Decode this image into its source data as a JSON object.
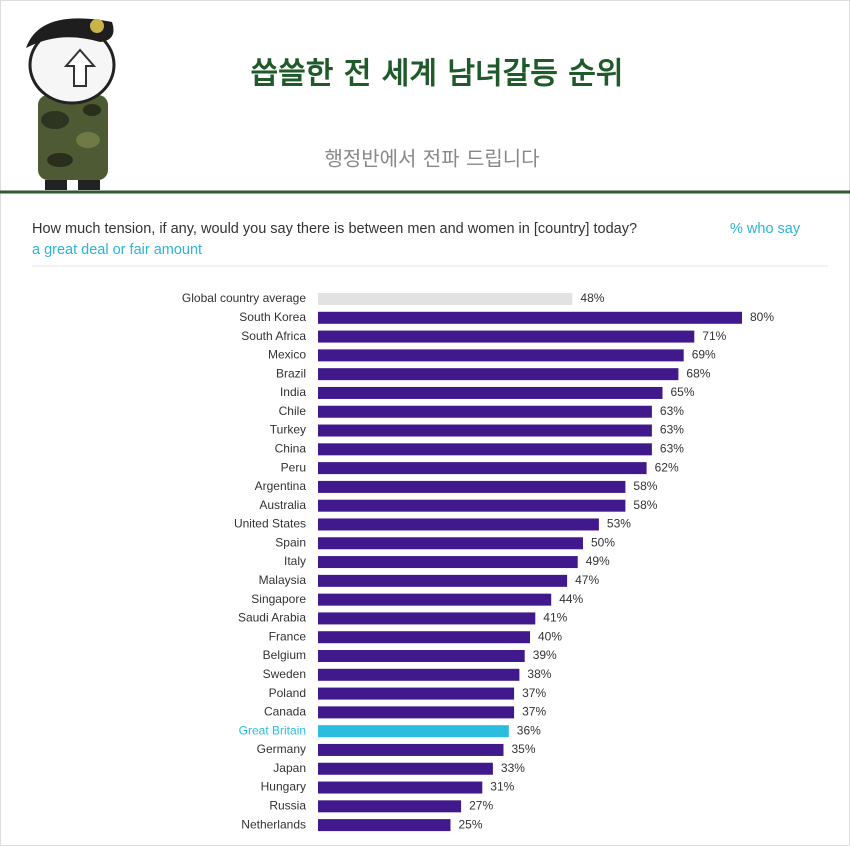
{
  "header": {
    "title": "씁쓸한 전 세계 남녀갈등 순위",
    "subtitle": "행정반에서 전파 드립니다"
  },
  "chart_data": {
    "type": "bar",
    "orientation": "horizontal",
    "title": "How much tension, if any, would you say there is between men and women in [country] today?",
    "subtitle": "% who say a great deal or fair amount",
    "categories": [
      "Global country average",
      "South Korea",
      "South Africa",
      "Mexico",
      "Brazil",
      "India",
      "Chile",
      "Turkey",
      "China",
      "Peru",
      "Argentina",
      "Australia",
      "United States",
      "Spain",
      "Italy",
      "Malaysia",
      "Singapore",
      "Saudi Arabia",
      "France",
      "Belgium",
      "Sweden",
      "Poland",
      "Canada",
      "Great Britain",
      "Germany",
      "Japan",
      "Hungary",
      "Russia",
      "Netherlands"
    ],
    "values": [
      48,
      80,
      71,
      69,
      68,
      65,
      63,
      63,
      63,
      62,
      58,
      58,
      53,
      50,
      49,
      47,
      44,
      41,
      40,
      39,
      38,
      37,
      37,
      36,
      35,
      33,
      31,
      27,
      25
    ],
    "value_labels": [
      "48%",
      "80%",
      "71%",
      "69%",
      "68%",
      "65%",
      "63%",
      "63%",
      "63%",
      "62%",
      "58%",
      "58%",
      "53%",
      "50%",
      "49%",
      "47%",
      "44%",
      "41%",
      "40%",
      "39%",
      "38%",
      "37%",
      "37%",
      "36%",
      "35%",
      "33%",
      "31%",
      "27%",
      "25%"
    ],
    "color": "#40198c",
    "highlight_color": "#2bbde0",
    "colors": [
      "#e2e2e2",
      "#40198c",
      "#40198c",
      "#40198c",
      "#40198c",
      "#40198c",
      "#40198c",
      "#40198c",
      "#40198c",
      "#40198c",
      "#40198c",
      "#40198c",
      "#40198c",
      "#40198c",
      "#40198c",
      "#40198c",
      "#40198c",
      "#40198c",
      "#40198c",
      "#40198c",
      "#40198c",
      "#40198c",
      "#40198c",
      "#2bbde0",
      "#40198c",
      "#40198c",
      "#40198c",
      "#40198c",
      "#40198c"
    ],
    "grid": false
  }
}
